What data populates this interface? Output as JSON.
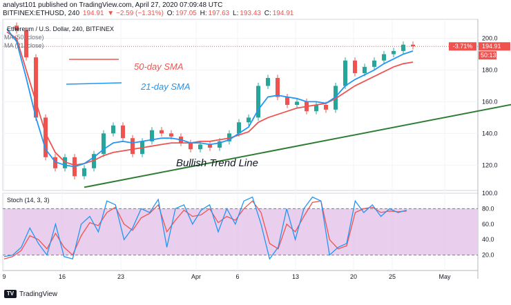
{
  "header": {
    "line1": "analyst101 published on TradingView.com, April 27, 2020 07:09:48 UTC",
    "symbol": "BITFINEX:ETHUSD, 240",
    "last": "194.91",
    "change": "▼ −2.59 (−1.31%)",
    "o_label": "O:",
    "o_val": "197.05",
    "h_label": "H:",
    "h_val": "197.63",
    "l_label": "L:",
    "l_val": "193.43",
    "c_label": "C:",
    "c_val": "194.91"
  },
  "chart_data": [
    {
      "type": "candlestick",
      "title": "Ethereum / U.S. Dollar, 240, BITFINEX",
      "legend": [
        "MA (50, close)",
        "MA (21, close)"
      ],
      "annotations": [
        "50-day SMA",
        "21-day SMA",
        "Bullish Trend Line"
      ],
      "y_ticks": [
        200.0,
        180.0,
        160.0,
        140.0,
        120.0
      ],
      "ylim": [
        104,
        212
      ],
      "x_ticks": [
        "9",
        "16",
        "23",
        "Apr",
        "6",
        "13",
        "20",
        "25",
        "May"
      ],
      "last_price": "194.91",
      "change_badge": "-3.71%",
      "countdown": "50:13",
      "closes": [
        [
          0,
          208
        ],
        [
          1,
          205
        ],
        [
          2,
          188
        ],
        [
          3,
          150
        ],
        [
          4,
          125
        ],
        [
          5,
          118
        ],
        [
          6,
          125
        ],
        [
          7,
          113
        ],
        [
          8,
          118
        ],
        [
          9,
          127
        ],
        [
          10,
          140
        ],
        [
          11,
          145
        ],
        [
          12,
          137
        ],
        [
          13,
          127
        ],
        [
          14,
          135
        ],
        [
          15,
          142
        ],
        [
          16,
          140
        ],
        [
          17,
          138
        ],
        [
          18,
          134
        ],
        [
          19,
          130
        ],
        [
          20,
          133
        ],
        [
          21,
          131
        ],
        [
          22,
          135
        ],
        [
          23,
          140
        ],
        [
          24,
          147
        ],
        [
          25,
          150
        ],
        [
          26,
          170
        ],
        [
          27,
          175
        ],
        [
          28,
          163
        ],
        [
          29,
          158
        ],
        [
          30,
          160
        ],
        [
          31,
          154
        ],
        [
          32,
          158
        ],
        [
          33,
          155
        ],
        [
          34,
          170
        ],
        [
          35,
          186
        ],
        [
          36,
          178
        ],
        [
          37,
          182
        ],
        [
          38,
          186
        ],
        [
          39,
          190
        ],
        [
          40,
          192
        ],
        [
          41,
          196
        ],
        [
          42,
          195
        ]
      ],
      "sma50": [
        [
          0,
          204
        ],
        [
          1,
          200
        ],
        [
          2,
          180
        ],
        [
          3,
          160
        ],
        [
          4,
          140
        ],
        [
          5,
          128
        ],
        [
          6,
          122
        ],
        [
          7,
          120
        ],
        [
          8,
          121
        ],
        [
          9,
          123
        ],
        [
          10,
          126
        ],
        [
          11,
          128
        ],
        [
          12,
          129
        ],
        [
          13,
          130
        ],
        [
          14,
          131
        ],
        [
          15,
          132
        ],
        [
          16,
          133
        ],
        [
          17,
          134
        ],
        [
          18,
          134
        ],
        [
          19,
          134
        ],
        [
          20,
          135
        ],
        [
          21,
          135
        ],
        [
          22,
          136
        ],
        [
          23,
          137
        ],
        [
          24,
          139
        ],
        [
          25,
          141
        ],
        [
          26,
          147
        ],
        [
          27,
          150
        ],
        [
          28,
          152
        ],
        [
          29,
          154
        ],
        [
          30,
          156
        ],
        [
          31,
          157
        ],
        [
          32,
          158
        ],
        [
          33,
          159
        ],
        [
          34,
          162
        ],
        [
          35,
          166
        ],
        [
          36,
          170
        ],
        [
          37,
          173
        ],
        [
          38,
          176
        ],
        [
          39,
          179
        ],
        [
          40,
          182
        ],
        [
          41,
          184
        ],
        [
          42,
          185
        ]
      ],
      "sma21": [
        [
          0,
          206
        ],
        [
          1,
          198
        ],
        [
          2,
          175
        ],
        [
          3,
          150
        ],
        [
          4,
          130
        ],
        [
          5,
          122
        ],
        [
          6,
          120
        ],
        [
          7,
          119
        ],
        [
          8,
          121
        ],
        [
          9,
          125
        ],
        [
          10,
          130
        ],
        [
          11,
          134
        ],
        [
          12,
          135
        ],
        [
          13,
          134
        ],
        [
          14,
          135
        ],
        [
          15,
          136
        ],
        [
          16,
          137
        ],
        [
          17,
          137
        ],
        [
          18,
          136
        ],
        [
          19,
          134
        ],
        [
          20,
          134
        ],
        [
          21,
          133
        ],
        [
          22,
          134
        ],
        [
          23,
          136
        ],
        [
          24,
          140
        ],
        [
          25,
          144
        ],
        [
          26,
          155
        ],
        [
          27,
          163
        ],
        [
          28,
          164
        ],
        [
          29,
          163
        ],
        [
          30,
          162
        ],
        [
          31,
          160
        ],
        [
          32,
          160
        ],
        [
          33,
          159
        ],
        [
          34,
          163
        ],
        [
          35,
          170
        ],
        [
          36,
          174
        ],
        [
          37,
          177
        ],
        [
          38,
          180
        ],
        [
          39,
          184
        ],
        [
          40,
          187
        ],
        [
          41,
          190
        ],
        [
          42,
          192
        ]
      ],
      "trend_line": [
        [
          8,
          106
        ],
        [
          63,
          171
        ]
      ]
    },
    {
      "type": "line",
      "title": "Stoch (14, 3, 3)",
      "y_ticks": [
        100.0,
        80.0,
        60.0,
        40.0,
        20.0
      ],
      "ylim": [
        0,
        100
      ],
      "bands": [
        20,
        80
      ],
      "k": [
        [
          0,
          18
        ],
        [
          1,
          20
        ],
        [
          2,
          30
        ],
        [
          3,
          55
        ],
        [
          4,
          35
        ],
        [
          5,
          20
        ],
        [
          6,
          60
        ],
        [
          7,
          18
        ],
        [
          8,
          15
        ],
        [
          9,
          60
        ],
        [
          10,
          70
        ],
        [
          11,
          50
        ],
        [
          12,
          90
        ],
        [
          13,
          85
        ],
        [
          14,
          40
        ],
        [
          15,
          55
        ],
        [
          16,
          80
        ],
        [
          17,
          75
        ],
        [
          18,
          92
        ],
        [
          19,
          30
        ],
        [
          20,
          80
        ],
        [
          21,
          85
        ],
        [
          22,
          60
        ],
        [
          23,
          78
        ],
        [
          24,
          85
        ],
        [
          25,
          50
        ],
        [
          26,
          80
        ],
        [
          27,
          60
        ],
        [
          28,
          90
        ],
        [
          29,
          95
        ],
        [
          30,
          60
        ],
        [
          31,
          15
        ],
        [
          32,
          30
        ],
        [
          33,
          80
        ],
        [
          34,
          40
        ],
        [
          35,
          80
        ],
        [
          36,
          95
        ],
        [
          37,
          90
        ],
        [
          38,
          20
        ],
        [
          39,
          30
        ],
        [
          40,
          35
        ],
        [
          41,
          90
        ],
        [
          42,
          75
        ],
        [
          43,
          85
        ],
        [
          44,
          70
        ],
        [
          45,
          80
        ],
        [
          46,
          75
        ],
        [
          47,
          78
        ]
      ],
      "d": [
        [
          0,
          15
        ],
        [
          1,
          18
        ],
        [
          2,
          26
        ],
        [
          3,
          45
        ],
        [
          4,
          40
        ],
        [
          5,
          28
        ],
        [
          6,
          48
        ],
        [
          7,
          30
        ],
        [
          8,
          20
        ],
        [
          9,
          45
        ],
        [
          10,
          62
        ],
        [
          11,
          58
        ],
        [
          12,
          75
        ],
        [
          13,
          82
        ],
        [
          14,
          60
        ],
        [
          15,
          52
        ],
        [
          16,
          68
        ],
        [
          17,
          74
        ],
        [
          18,
          85
        ],
        [
          19,
          50
        ],
        [
          20,
          65
        ],
        [
          21,
          78
        ],
        [
          22,
          70
        ],
        [
          23,
          72
        ],
        [
          24,
          80
        ],
        [
          25,
          62
        ],
        [
          26,
          70
        ],
        [
          27,
          65
        ],
        [
          28,
          80
        ],
        [
          29,
          90
        ],
        [
          30,
          75
        ],
        [
          31,
          35
        ],
        [
          32,
          28
        ],
        [
          33,
          60
        ],
        [
          34,
          50
        ],
        [
          35,
          70
        ],
        [
          36,
          88
        ],
        [
          37,
          90
        ],
        [
          38,
          40
        ],
        [
          39,
          28
        ],
        [
          40,
          32
        ],
        [
          41,
          75
        ],
        [
          42,
          80
        ],
        [
          43,
          82
        ],
        [
          44,
          75
        ],
        [
          45,
          77
        ],
        [
          46,
          76
        ],
        [
          47,
          77
        ]
      ]
    }
  ],
  "footer": {
    "logo": "TV",
    "brand": "TradingView"
  },
  "colors": {
    "up": "#26a69a",
    "down": "#ef5350",
    "sma50": "#ef5350",
    "sma21": "#2196f3",
    "trend": "#2e7d32",
    "stoch_k": "#2196f3",
    "stoch_d": "#ef5350",
    "band": "#e1bee7"
  }
}
